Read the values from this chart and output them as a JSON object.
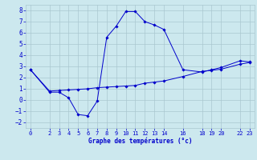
{
  "xlabel": "Graphe des températures (°c)",
  "bg_color": "#cce8ee",
  "grid_color": "#aac8d0",
  "line_color": "#0000cc",
  "xlim": [
    -0.5,
    23.5
  ],
  "ylim": [
    -2.5,
    8.5
  ],
  "yticks": [
    -2,
    -1,
    0,
    1,
    2,
    3,
    4,
    5,
    6,
    7,
    8
  ],
  "xticks": [
    0,
    2,
    3,
    4,
    5,
    6,
    7,
    8,
    9,
    10,
    11,
    12,
    13,
    14,
    16,
    18,
    19,
    20,
    22,
    23
  ],
  "line1_x": [
    0,
    2,
    3,
    4,
    5,
    6,
    7,
    8,
    9,
    10,
    11,
    12,
    13,
    14,
    16,
    18,
    19,
    20,
    22,
    23
  ],
  "line1_y": [
    2.7,
    0.7,
    0.7,
    0.2,
    -1.3,
    -1.4,
    -0.1,
    5.6,
    6.6,
    7.9,
    7.9,
    7.0,
    6.7,
    6.3,
    2.7,
    2.5,
    2.7,
    2.9,
    3.5,
    3.4
  ],
  "line2_x": [
    0,
    2,
    3,
    4,
    5,
    6,
    7,
    8,
    9,
    10,
    11,
    12,
    13,
    14,
    16,
    18,
    19,
    20,
    22,
    23
  ],
  "line2_y": [
    2.7,
    0.8,
    0.85,
    0.9,
    0.95,
    1.0,
    1.1,
    1.15,
    1.2,
    1.25,
    1.3,
    1.5,
    1.6,
    1.7,
    2.1,
    2.55,
    2.65,
    2.75,
    3.2,
    3.35
  ]
}
